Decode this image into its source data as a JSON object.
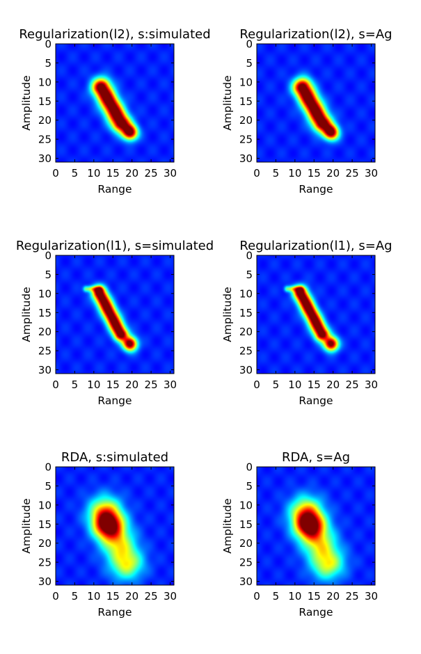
{
  "chart_data": [
    {
      "type": "heatmap",
      "title": "Regularization(l2), s:simulated",
      "xlabel": "Range",
      "ylabel": "Amplitude",
      "xlim": [
        0,
        31
      ],
      "ylim": [
        31,
        0
      ],
      "xticks": [
        "0",
        "5",
        "10",
        "15",
        "20",
        "25",
        "30"
      ],
      "yticks": [
        "0",
        "5",
        "10",
        "15",
        "20",
        "25",
        "30"
      ],
      "colormap": "jet",
      "background_color": "#0000b0",
      "grid": false,
      "features": [
        {
          "shape": "ridge",
          "from": [
            12,
            11.5
          ],
          "to": [
            17,
            20.5
          ],
          "width": 1.7,
          "peak": 1.0
        },
        {
          "shape": "blob",
          "center": [
            19.5,
            23.2
          ],
          "radius": 1.4,
          "peak": 0.92
        }
      ]
    },
    {
      "type": "heatmap",
      "title": "Regularization(l2), s=Ag",
      "xlabel": "Range",
      "ylabel": "Amplitude",
      "xlim": [
        0,
        31
      ],
      "ylim": [
        31,
        0
      ],
      "xticks": [
        "0",
        "5",
        "10",
        "15",
        "20",
        "25",
        "30"
      ],
      "yticks": [
        "0",
        "5",
        "10",
        "15",
        "20",
        "25",
        "30"
      ],
      "colormap": "jet",
      "background_color": "#0000b0",
      "grid": false,
      "features": [
        {
          "shape": "ridge",
          "from": [
            12,
            11.5
          ],
          "to": [
            17,
            20.5
          ],
          "width": 1.7,
          "peak": 1.0
        },
        {
          "shape": "blob",
          "center": [
            19.5,
            23.2
          ],
          "radius": 1.4,
          "peak": 0.92
        }
      ]
    },
    {
      "type": "heatmap",
      "title": "Regularization(l1), s=simulated",
      "xlabel": "Range",
      "ylabel": "Amplitude",
      "xlim": [
        0,
        31
      ],
      "ylim": [
        31,
        0
      ],
      "xticks": [
        "0",
        "5",
        "10",
        "15",
        "20",
        "25",
        "30"
      ],
      "yticks": [
        "0",
        "5",
        "10",
        "15",
        "20",
        "25",
        "30"
      ],
      "colormap": "jet",
      "background_color": "#0000b0",
      "grid": false,
      "features": [
        {
          "shape": "ridge",
          "from": [
            11.5,
            10
          ],
          "to": [
            17,
            20.5
          ],
          "width": 1.3,
          "peak": 1.0
        },
        {
          "shape": "blob",
          "center": [
            19.5,
            23.2
          ],
          "radius": 1.3,
          "peak": 0.92
        },
        {
          "shape": "streak",
          "from": [
            8,
            8.8
          ],
          "to": [
            11.5,
            8.8
          ],
          "width": 0.55,
          "peak": 0.35
        }
      ]
    },
    {
      "type": "heatmap",
      "title": "Regularization(l1), s=Ag",
      "xlabel": "Range",
      "ylabel": "Amplitude",
      "xlim": [
        0,
        31
      ],
      "ylim": [
        31,
        0
      ],
      "xticks": [
        "0",
        "5",
        "10",
        "15",
        "20",
        "25",
        "30"
      ],
      "yticks": [
        "0",
        "5",
        "10",
        "15",
        "20",
        "25",
        "30"
      ],
      "colormap": "jet",
      "background_color": "#0000b0",
      "grid": false,
      "features": [
        {
          "shape": "ridge",
          "from": [
            11.5,
            10
          ],
          "to": [
            17,
            20.5
          ],
          "width": 1.3,
          "peak": 1.0
        },
        {
          "shape": "blob",
          "center": [
            19.5,
            23.2
          ],
          "radius": 1.3,
          "peak": 0.92
        },
        {
          "shape": "streak",
          "from": [
            8,
            8.8
          ],
          "to": [
            11.5,
            8.8
          ],
          "width": 0.55,
          "peak": 0.35
        }
      ]
    },
    {
      "type": "heatmap",
      "title": "RDA, s:simulated",
      "xlabel": "Range",
      "ylabel": "Amplitude",
      "xlim": [
        0,
        31
      ],
      "ylim": [
        31,
        0
      ],
      "xticks": [
        "0",
        "5",
        "10",
        "15",
        "20",
        "25",
        "30"
      ],
      "yticks": [
        "0",
        "5",
        "10",
        "15",
        "20",
        "25",
        "30"
      ],
      "colormap": "jet",
      "background_color": "#0000b0",
      "grid": false,
      "features": [
        {
          "shape": "ridge",
          "from": [
            13,
            12
          ],
          "to": [
            18.5,
            25
          ],
          "width": 3.0,
          "peak": 0.5
        },
        {
          "shape": "blob",
          "center": [
            13.5,
            15
          ],
          "radius": 2.5,
          "peak": 0.65
        }
      ]
    },
    {
      "type": "heatmap",
      "title": "RDA, s=Ag",
      "xlabel": "Range",
      "ylabel": "Amplitude",
      "xlim": [
        0,
        31
      ],
      "ylim": [
        31,
        0
      ],
      "xticks": [
        "0",
        "5",
        "10",
        "15",
        "20",
        "25",
        "30"
      ],
      "yticks": [
        "0",
        "5",
        "10",
        "15",
        "20",
        "25",
        "30"
      ],
      "colormap": "jet",
      "background_color": "#0000b0",
      "grid": false,
      "features": [
        {
          "shape": "ridge",
          "from": [
            13,
            12
          ],
          "to": [
            18.5,
            25
          ],
          "width": 3.0,
          "peak": 0.5
        },
        {
          "shape": "blob",
          "center": [
            13.5,
            15
          ],
          "radius": 2.5,
          "peak": 0.65
        }
      ]
    }
  ]
}
